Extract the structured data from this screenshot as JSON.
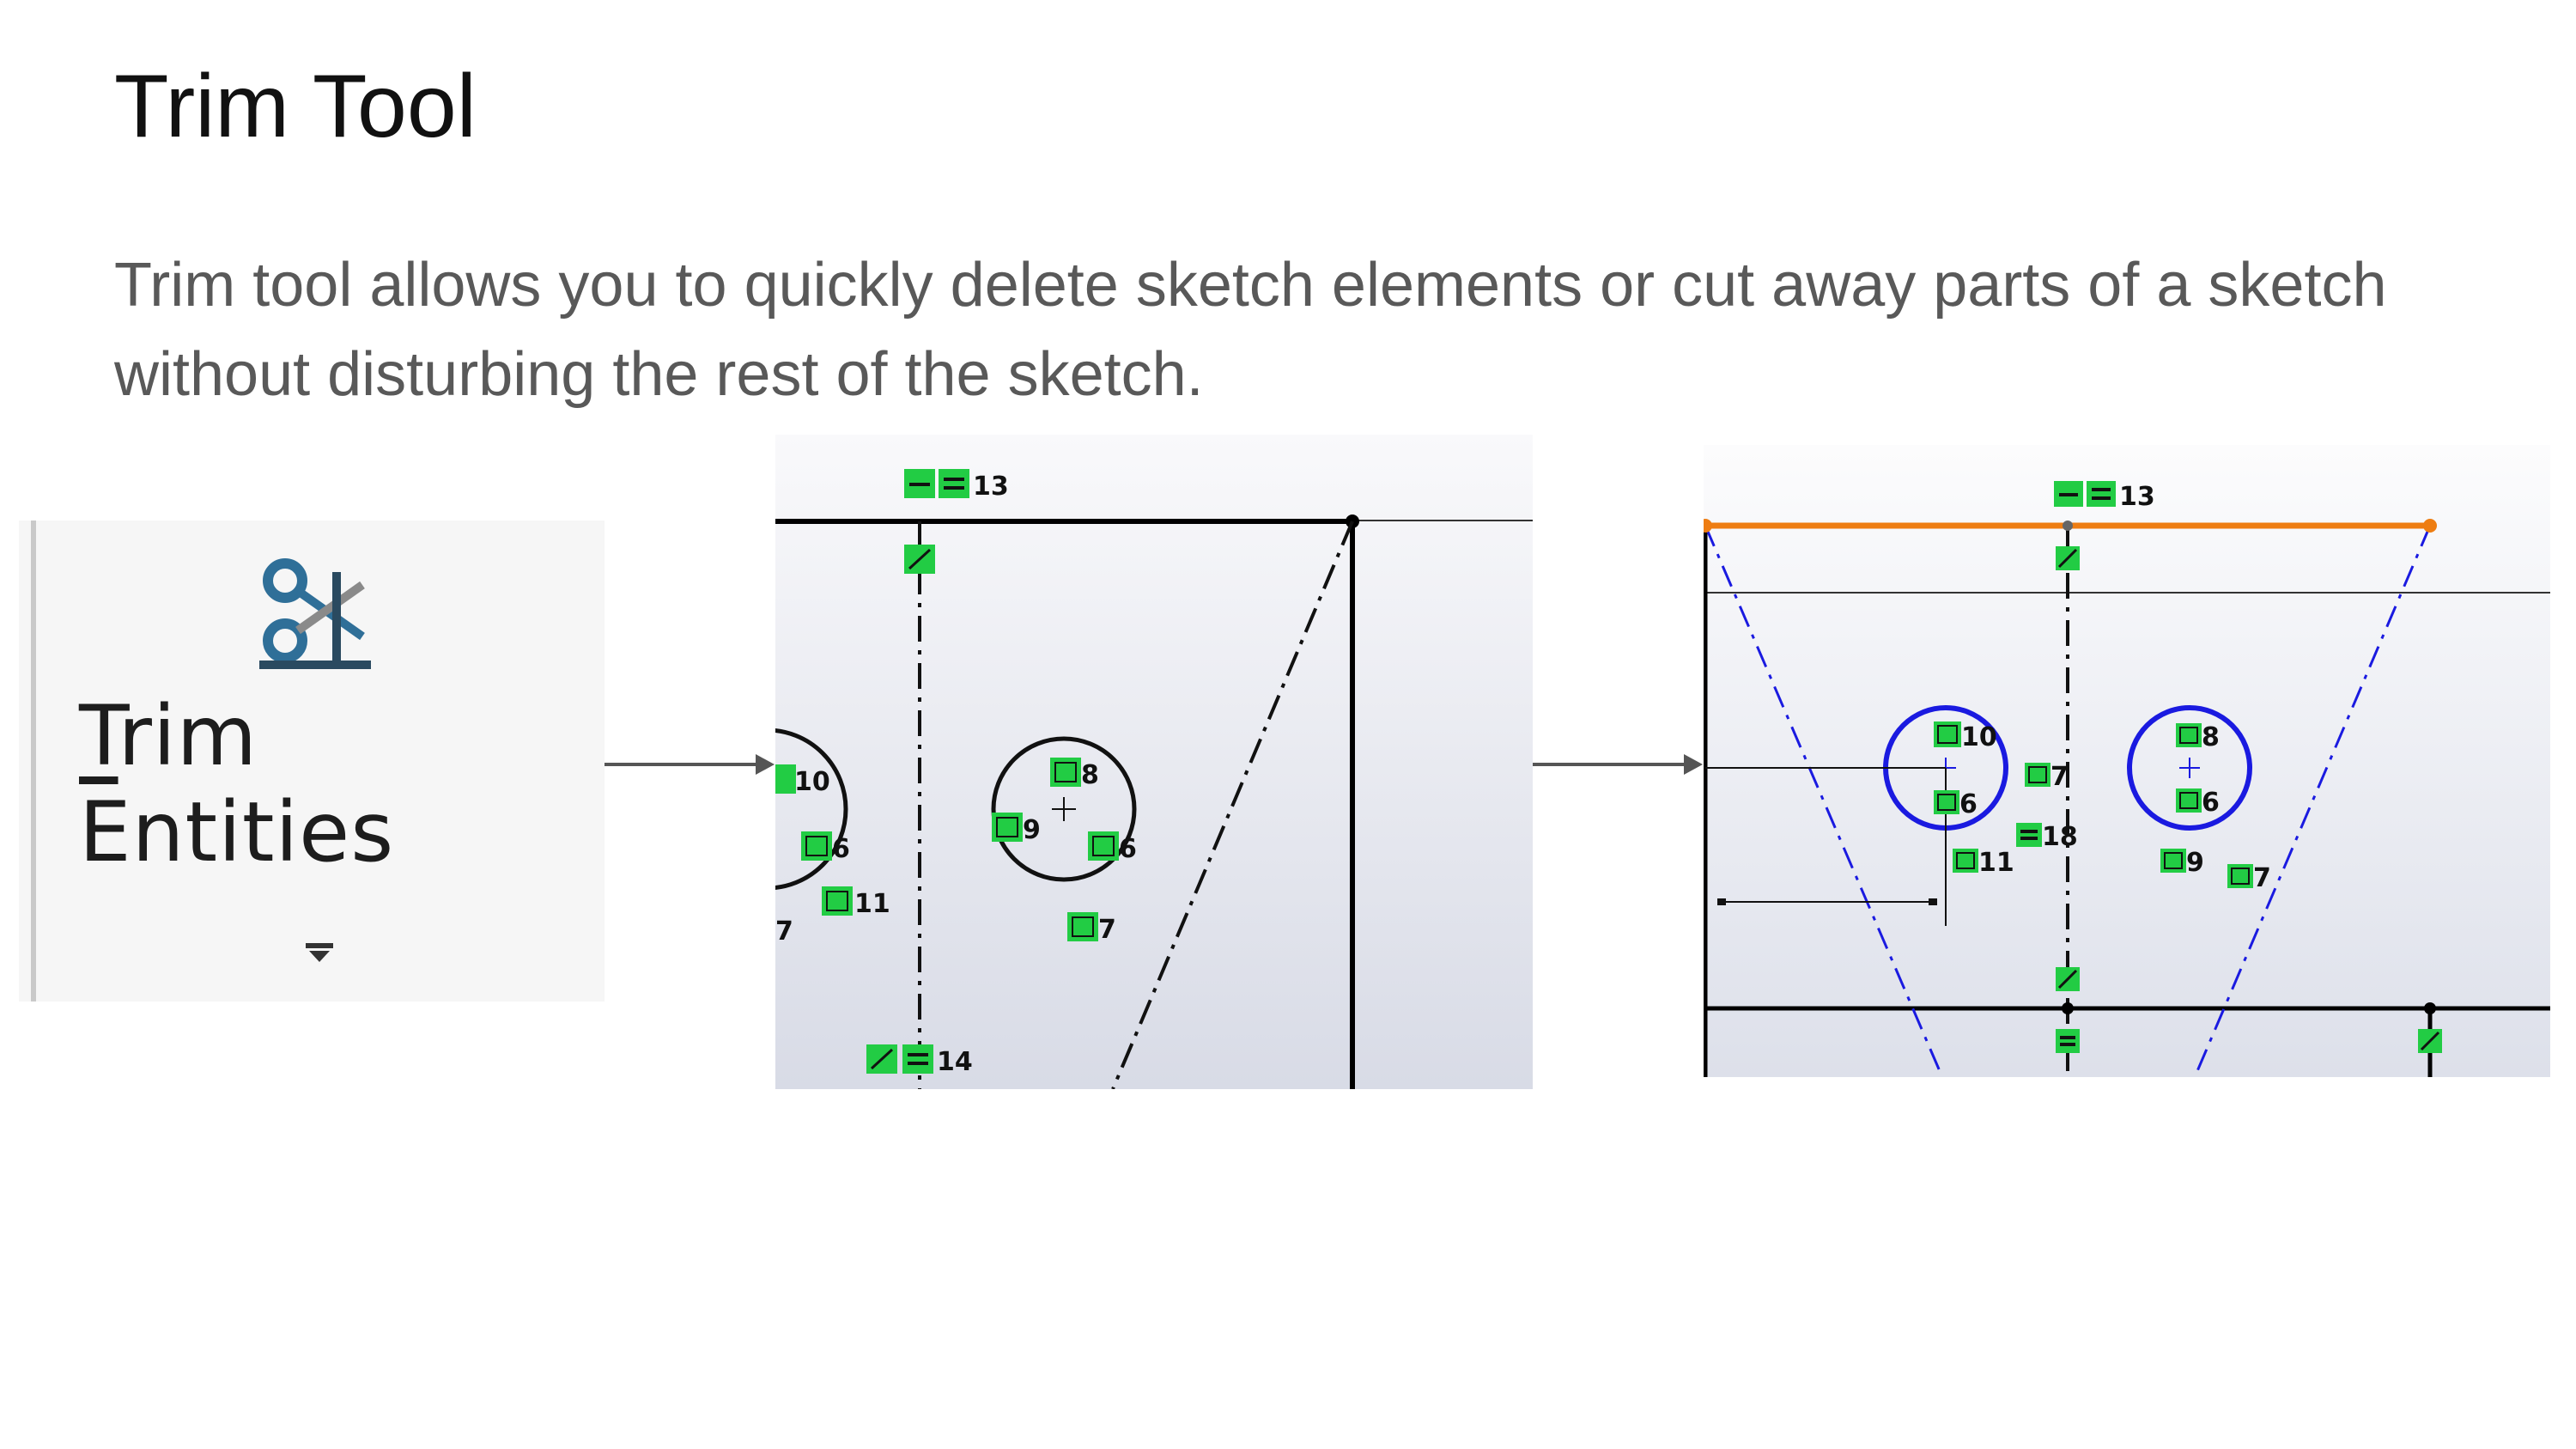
{
  "slide": {
    "title": "Trim Tool",
    "body": "Trim tool allows you to quickly delete sketch elements or cut away parts of a sketch without disturbing the rest of the sketch."
  },
  "tool_button": {
    "label_mnemonic": "T",
    "label_rest": "rim Entities",
    "icon": "scissors-trim-icon",
    "dropdown_icon": "dropdown-arrow-icon"
  },
  "sketch_before": {
    "relations": [
      {
        "id": "r13",
        "icon": "horizontal-equal",
        "label": "13"
      },
      {
        "id": "r10",
        "icon": "fix",
        "label": "10"
      },
      {
        "id": "r6a",
        "icon": "fix",
        "label": "6"
      },
      {
        "id": "r11",
        "icon": "fix",
        "label": "11"
      },
      {
        "id": "r7a",
        "icon": "fix",
        "label": "7"
      },
      {
        "id": "r8",
        "icon": "fix",
        "label": "8"
      },
      {
        "id": "r9",
        "icon": "fix",
        "label": "9"
      },
      {
        "id": "r6b",
        "icon": "fix",
        "label": "6"
      },
      {
        "id": "r7b",
        "icon": "fix",
        "label": "7"
      },
      {
        "id": "r14",
        "icon": "coincident-equal",
        "label": "14"
      }
    ]
  },
  "sketch_after": {
    "relations": [
      {
        "id": "r13",
        "icon": "horizontal-equal",
        "label": "13"
      },
      {
        "id": "r10",
        "icon": "fix",
        "label": "10"
      },
      {
        "id": "r7a",
        "icon": "fix",
        "label": "7"
      },
      {
        "id": "r6a",
        "icon": "fix",
        "label": "6"
      },
      {
        "id": "r18",
        "icon": "equal",
        "label": "18"
      },
      {
        "id": "r11",
        "icon": "fix",
        "label": "11"
      },
      {
        "id": "r8",
        "icon": "fix",
        "label": "8"
      },
      {
        "id": "r6b",
        "icon": "fix",
        "label": "6"
      },
      {
        "id": "r9",
        "icon": "fix",
        "label": "9"
      },
      {
        "id": "r7b",
        "icon": "fix",
        "label": "7"
      }
    ],
    "trimmed_line_color": "#ee7d12",
    "construction_color": "#1a1ae0"
  },
  "colors": {
    "relation_badge": "#22cc44",
    "sketch_line": "#111111",
    "arrow": "#555555"
  }
}
